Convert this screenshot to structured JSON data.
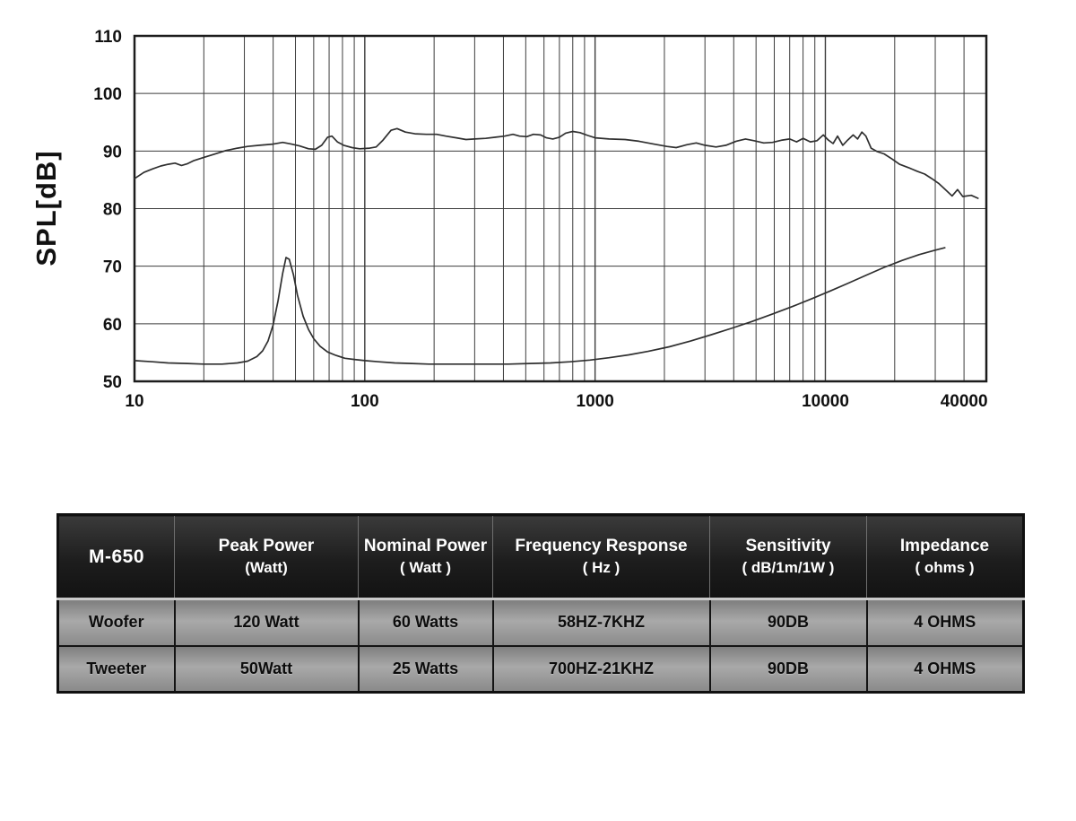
{
  "chart_data": {
    "type": "line",
    "title": "",
    "xlabel": "",
    "ylabel": "SPL[dB]",
    "x_scale": "log",
    "x_range": [
      10,
      50000
    ],
    "y_range": [
      50,
      110
    ],
    "y_ticks": [
      50,
      60,
      70,
      80,
      90,
      100,
      110
    ],
    "x_ticks": [
      {
        "f": 10,
        "label": "10"
      },
      {
        "f": 100,
        "label": "100"
      },
      {
        "f": 1000,
        "label": "1000"
      },
      {
        "f": 10000,
        "label": "10000"
      },
      {
        "f": 40000,
        "label": "40000"
      }
    ],
    "grid": true,
    "colors": {
      "grid": "#3c3c3c",
      "frame": "#1c1c1c",
      "curve": "#2f2f2f",
      "text": "#111111"
    },
    "series": [
      {
        "name": "spl-response-curve",
        "points": [
          [
            10,
            85.2
          ],
          [
            11,
            86.3
          ],
          [
            12,
            86.9
          ],
          [
            13,
            87.4
          ],
          [
            14,
            87.7
          ],
          [
            15,
            87.9
          ],
          [
            16,
            87.5
          ],
          [
            17,
            87.8
          ],
          [
            18,
            88.3
          ],
          [
            20,
            88.9
          ],
          [
            22,
            89.4
          ],
          [
            25,
            90.1
          ],
          [
            28,
            90.5
          ],
          [
            31,
            90.8
          ],
          [
            35,
            91.0
          ],
          [
            40,
            91.2
          ],
          [
            44,
            91.5
          ],
          [
            48,
            91.2
          ],
          [
            52,
            90.9
          ],
          [
            57,
            90.4
          ],
          [
            61,
            90.3
          ],
          [
            65,
            91.0
          ],
          [
            69,
            92.4
          ],
          [
            72,
            92.6
          ],
          [
            76,
            91.6
          ],
          [
            81,
            91.0
          ],
          [
            88,
            90.6
          ],
          [
            95,
            90.4
          ],
          [
            105,
            90.5
          ],
          [
            112,
            90.7
          ],
          [
            120,
            91.9
          ],
          [
            130,
            93.6
          ],
          [
            138,
            93.9
          ],
          [
            150,
            93.3
          ],
          [
            165,
            93.0
          ],
          [
            185,
            92.9
          ],
          [
            205,
            92.9
          ],
          [
            225,
            92.6
          ],
          [
            250,
            92.3
          ],
          [
            275,
            92.0
          ],
          [
            300,
            92.1
          ],
          [
            335,
            92.2
          ],
          [
            370,
            92.4
          ],
          [
            405,
            92.6
          ],
          [
            440,
            92.9
          ],
          [
            470,
            92.6
          ],
          [
            505,
            92.5
          ],
          [
            540,
            92.9
          ],
          [
            580,
            92.8
          ],
          [
            615,
            92.3
          ],
          [
            655,
            92.1
          ],
          [
            700,
            92.4
          ],
          [
            745,
            93.1
          ],
          [
            800,
            93.4
          ],
          [
            860,
            93.2
          ],
          [
            930,
            92.7
          ],
          [
            1000,
            92.3
          ],
          [
            1150,
            92.1
          ],
          [
            1350,
            92.0
          ],
          [
            1550,
            91.7
          ],
          [
            1800,
            91.2
          ],
          [
            2050,
            90.8
          ],
          [
            2250,
            90.6
          ],
          [
            2500,
            91.1
          ],
          [
            2750,
            91.4
          ],
          [
            3000,
            91.0
          ],
          [
            3350,
            90.7
          ],
          [
            3700,
            91.0
          ],
          [
            4100,
            91.7
          ],
          [
            4500,
            92.1
          ],
          [
            4900,
            91.8
          ],
          [
            5400,
            91.4
          ],
          [
            5900,
            91.5
          ],
          [
            6500,
            91.9
          ],
          [
            7000,
            92.1
          ],
          [
            7500,
            91.6
          ],
          [
            8000,
            92.2
          ],
          [
            8600,
            91.6
          ],
          [
            9200,
            91.8
          ],
          [
            9800,
            92.8
          ],
          [
            10300,
            91.9
          ],
          [
            10800,
            91.3
          ],
          [
            11300,
            92.6
          ],
          [
            11900,
            91.0
          ],
          [
            12500,
            91.9
          ],
          [
            13200,
            92.8
          ],
          [
            13800,
            92.1
          ],
          [
            14400,
            93.3
          ],
          [
            15000,
            92.6
          ],
          [
            15800,
            90.5
          ],
          [
            16800,
            89.9
          ],
          [
            18000,
            89.5
          ],
          [
            19500,
            88.6
          ],
          [
            21000,
            87.7
          ],
          [
            23000,
            87.1
          ],
          [
            25000,
            86.5
          ],
          [
            27000,
            86.0
          ],
          [
            29000,
            85.2
          ],
          [
            31000,
            84.4
          ],
          [
            33000,
            83.4
          ],
          [
            35500,
            82.2
          ],
          [
            37500,
            83.3
          ],
          [
            39500,
            82.1
          ],
          [
            43000,
            82.3
          ],
          [
            46000,
            81.8
          ]
        ]
      },
      {
        "name": "impedance-curve",
        "points": [
          [
            10,
            53.6
          ],
          [
            12,
            53.4
          ],
          [
            14,
            53.2
          ],
          [
            17,
            53.1
          ],
          [
            20,
            53.0
          ],
          [
            24,
            53.0
          ],
          [
            28,
            53.2
          ],
          [
            31,
            53.5
          ],
          [
            34,
            54.3
          ],
          [
            36,
            55.3
          ],
          [
            38,
            57.0
          ],
          [
            40,
            59.8
          ],
          [
            42,
            64.0
          ],
          [
            44,
            68.8
          ],
          [
            45.5,
            71.5
          ],
          [
            47,
            71.2
          ],
          [
            49,
            68.5
          ],
          [
            51,
            65.0
          ],
          [
            54,
            61.3
          ],
          [
            57,
            59.0
          ],
          [
            60,
            57.4
          ],
          [
            64,
            56.1
          ],
          [
            69,
            55.1
          ],
          [
            75,
            54.5
          ],
          [
            82,
            54.0
          ],
          [
            90,
            53.8
          ],
          [
            100,
            53.6
          ],
          [
            115,
            53.4
          ],
          [
            135,
            53.2
          ],
          [
            160,
            53.1
          ],
          [
            190,
            53.0
          ],
          [
            230,
            53.0
          ],
          [
            280,
            53.0
          ],
          [
            340,
            53.0
          ],
          [
            420,
            53.0
          ],
          [
            520,
            53.1
          ],
          [
            640,
            53.2
          ],
          [
            780,
            53.4
          ],
          [
            950,
            53.7
          ],
          [
            1150,
            54.1
          ],
          [
            1400,
            54.6
          ],
          [
            1700,
            55.2
          ],
          [
            2100,
            56.0
          ],
          [
            2600,
            57.0
          ],
          [
            3200,
            58.1
          ],
          [
            3900,
            59.2
          ],
          [
            4800,
            60.4
          ],
          [
            5900,
            61.7
          ],
          [
            7200,
            63.0
          ],
          [
            8800,
            64.4
          ],
          [
            10500,
            65.7
          ],
          [
            12500,
            67.0
          ],
          [
            15000,
            68.4
          ],
          [
            18000,
            69.8
          ],
          [
            21500,
            71.0
          ],
          [
            25500,
            72.0
          ],
          [
            29500,
            72.7
          ],
          [
            33000,
            73.2
          ]
        ]
      }
    ]
  },
  "spec_table": {
    "model": "M-650",
    "columns": [
      {
        "line1": "Peak Power",
        "line2": "(Watt)"
      },
      {
        "line1": "Nominal Power",
        "line2": "( Watt )"
      },
      {
        "line1": "Frequency Response",
        "line2": "( Hz )"
      },
      {
        "line1": "Sensitivity",
        "line2": "( dB/1m/1W )"
      },
      {
        "line1": "Impedance",
        "line2": "( ohms )"
      }
    ],
    "rows": [
      {
        "name": "Woofer",
        "values": [
          "120 Watt",
          "60 Watts",
          "58HZ-7KHZ",
          "90DB",
          "4 OHMS"
        ]
      },
      {
        "name": "Tweeter",
        "values": [
          "50Watt",
          "25 Watts",
          "700HZ-21KHZ",
          "90DB",
          "4 OHMS"
        ]
      }
    ]
  }
}
